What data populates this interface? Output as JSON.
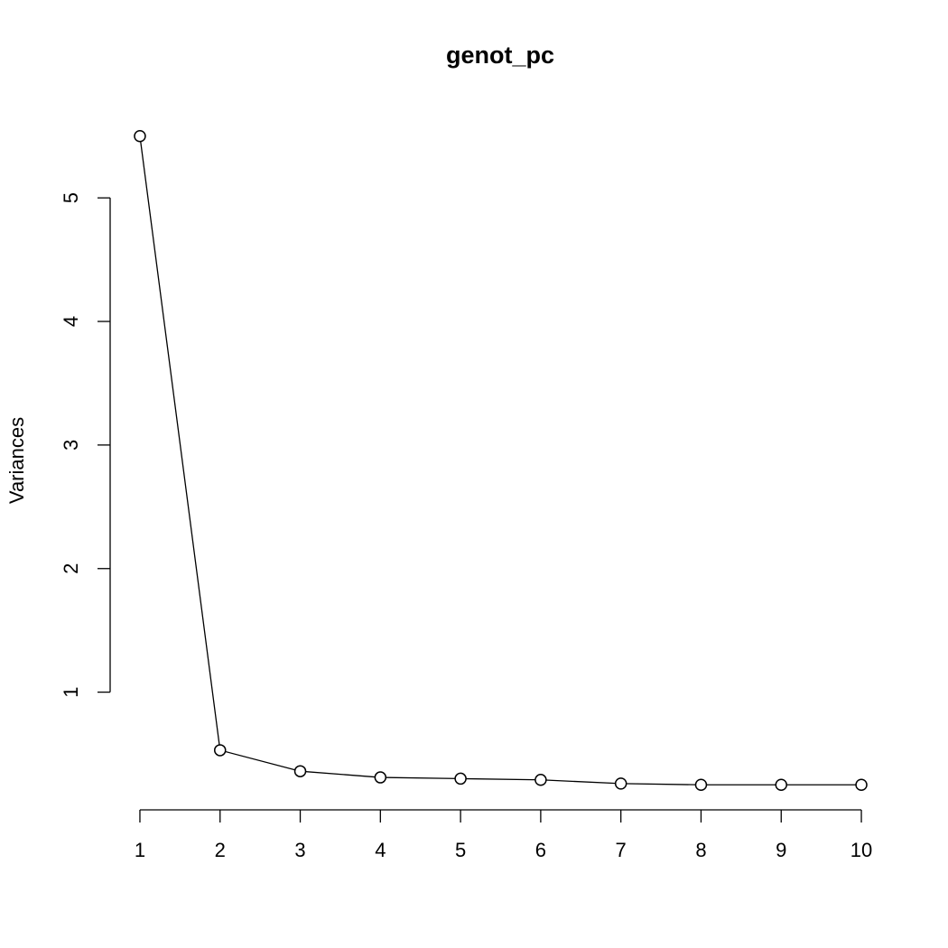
{
  "chart_data": {
    "type": "line",
    "title": "genot_pc",
    "y_label": "Variances",
    "x": [
      1,
      2,
      3,
      4,
      5,
      6,
      7,
      8,
      9,
      10
    ],
    "series": [
      {
        "color": "#000000",
        "values": [
          5.5,
          0.53,
          0.36,
          0.31,
          0.3,
          0.29,
          0.26,
          0.25,
          0.25,
          0.25
        ]
      }
    ],
    "xlim": [
      0.64,
      10.36
    ],
    "xticks": [
      1,
      2,
      3,
      4,
      5,
      6,
      7,
      8,
      9,
      10
    ],
    "ylim": [
      0.04,
      5.71
    ],
    "yticks": [
      1,
      2,
      3,
      4,
      5
    ],
    "markers": "open-circle",
    "grid": false
  }
}
